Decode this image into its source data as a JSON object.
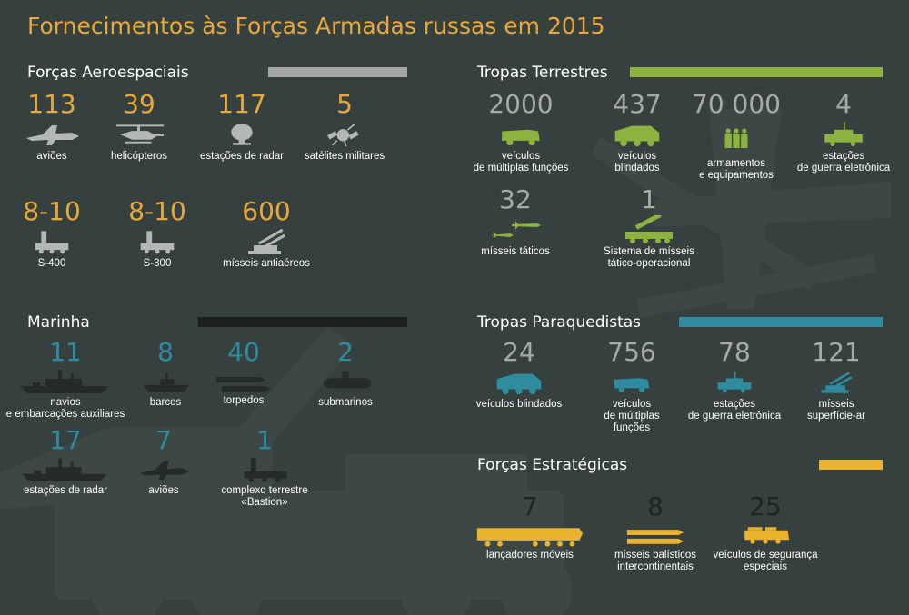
{
  "title": "Fornecimentos às Forças Armadas russas em 2015",
  "colors": {
    "background": "#36403e",
    "aerospace_number": "#e9a83c",
    "aerospace_icon": "#b3b8b6",
    "aerospace_bar": "#a3a7a6",
    "ground": "#8cb33f",
    "ground_number": "#a7aaa9",
    "navy": "#252b2a",
    "navy_number": "#2e8ba0",
    "airborne": "#2e8ba0",
    "airborne_number": "#a7aaa9",
    "strategic": "#e9b22f",
    "strategic_number": "#1f2423"
  },
  "sections": {
    "aerospace": {
      "title": "Forças Aeroespaciais",
      "items": [
        {
          "value": "113",
          "label": "aviões",
          "icon": "jet-icon"
        },
        {
          "value": "39",
          "label": "helicópteros",
          "icon": "helicopter-icon"
        },
        {
          "value": "117",
          "label": "estações de radar",
          "icon": "radar-dish-icon"
        },
        {
          "value": "5",
          "label": "satélites militares",
          "icon": "satellite-icon"
        },
        {
          "value": "8-10",
          "label": "S-400",
          "icon": "missile-launcher-truck-icon"
        },
        {
          "value": "8-10",
          "label": "S-300",
          "icon": "missile-launcher-truck-icon"
        },
        {
          "value": "600",
          "label": "mísseis antiaéreos",
          "icon": "antiaircraft-launcher-icon"
        }
      ]
    },
    "ground": {
      "title": "Tropas Terrestres",
      "items": [
        {
          "value": "2000",
          "label_lines": [
            "veículos",
            "de múltiplas funções"
          ],
          "icon": "utility-vehicle-icon"
        },
        {
          "value": "437",
          "label_lines": [
            "veículos",
            "blindados"
          ],
          "icon": "armored-vehicle-icon"
        },
        {
          "value": "70 000",
          "label_lines": [
            "armamentos",
            "e equipamentos"
          ],
          "icon": "soldiers-icon"
        },
        {
          "value": "4",
          "label_lines": [
            "estações",
            "de guerra eletrônica"
          ],
          "icon": "ew-station-icon"
        },
        {
          "value": "32",
          "label_lines": [
            "mísseis táticos"
          ],
          "icon": "tactical-missile-icon"
        },
        {
          "value": "1",
          "label_lines": [
            "Sistema de mísseis",
            "tático-operacional"
          ],
          "icon": "iskander-launcher-icon"
        }
      ]
    },
    "navy": {
      "title": "Marinha",
      "items": [
        {
          "value": "11",
          "label_lines": [
            "navios",
            "e embarcações auxiliares"
          ],
          "icon": "warship-icon"
        },
        {
          "value": "8",
          "label_lines": [
            "barcos"
          ],
          "icon": "boat-icon"
        },
        {
          "value": "40",
          "label_lines": [
            "torpedos"
          ],
          "icon": "torpedo-icon"
        },
        {
          "value": "2",
          "label_lines": [
            "submarinos"
          ],
          "icon": "submarine-icon"
        },
        {
          "value": "17",
          "label_lines": [
            "estações de radar"
          ],
          "icon": "radar-ship-icon"
        },
        {
          "value": "7",
          "label_lines": [
            "aviões"
          ],
          "icon": "naval-jet-icon"
        },
        {
          "value": "1",
          "label_lines": [
            "complexo terrestre",
            "«Bastion»"
          ],
          "icon": "coastal-launcher-icon"
        }
      ]
    },
    "airborne": {
      "title": "Tropas Paraquedistas",
      "items": [
        {
          "value": "24",
          "label_lines": [
            "veículos blindados"
          ],
          "icon": "armored-vehicle-icon"
        },
        {
          "value": "756",
          "label_lines": [
            "veículos",
            "de múltiplas",
            "funções"
          ],
          "icon": "utility-vehicle-icon"
        },
        {
          "value": "78",
          "label_lines": [
            "estações",
            "de guerra eletrônica"
          ],
          "icon": "ew-station-icon"
        },
        {
          "value": "121",
          "label_lines": [
            "mísseis",
            "superfície-ar"
          ],
          "icon": "antiaircraft-launcher-icon"
        }
      ]
    },
    "strategic": {
      "title": "Forças Estratégicas",
      "items": [
        {
          "value": "7",
          "label_lines": [
            "lançadores móveis"
          ],
          "icon": "mobile-launcher-icon"
        },
        {
          "value": "8",
          "label_lines": [
            "mísseis balísticos",
            "intercontinentais"
          ],
          "icon": "icbm-icon"
        },
        {
          "value": "25",
          "label_lines": [
            "veículos de segurança",
            "especiais"
          ],
          "icon": "security-vehicle-icon"
        }
      ]
    }
  },
  "chart_data": {
    "type": "table",
    "title": "Fornecimentos às Forças Armadas russas em 2015",
    "groups": [
      {
        "name": "Forças Aeroespaciais",
        "rows": [
          [
            "aviões",
            "113"
          ],
          [
            "helicópteros",
            "39"
          ],
          [
            "estações de radar",
            "117"
          ],
          [
            "satélites militares",
            "5"
          ],
          [
            "S-400",
            "8-10"
          ],
          [
            "S-300",
            "8-10"
          ],
          [
            "mísseis antiaéreos",
            "600"
          ]
        ]
      },
      {
        "name": "Tropas Terrestres",
        "rows": [
          [
            "veículos de múltiplas funções",
            "2000"
          ],
          [
            "veículos blindados",
            "437"
          ],
          [
            "armamentos e equipamentos",
            "70 000"
          ],
          [
            "estações de guerra eletrônica",
            "4"
          ],
          [
            "mísseis táticos",
            "32"
          ],
          [
            "Sistema de mísseis tático-operacional",
            "1"
          ]
        ]
      },
      {
        "name": "Marinha",
        "rows": [
          [
            "navios e embarcações auxiliares",
            "11"
          ],
          [
            "barcos",
            "8"
          ],
          [
            "torpedos",
            "40"
          ],
          [
            "submarinos",
            "2"
          ],
          [
            "estações de radar",
            "17"
          ],
          [
            "aviões",
            "7"
          ],
          [
            "complexo terrestre «Bastion»",
            "1"
          ]
        ]
      },
      {
        "name": "Tropas Paraquedistas",
        "rows": [
          [
            "veículos blindados",
            "24"
          ],
          [
            "veículos de múltiplas funções",
            "756"
          ],
          [
            "estações de guerra eletrônica",
            "78"
          ],
          [
            "mísseis superfície-ar",
            "121"
          ]
        ]
      },
      {
        "name": "Forças Estratégicas",
        "rows": [
          [
            "lançadores móveis",
            "7"
          ],
          [
            "mísseis balísticos intercontinentais",
            "8"
          ],
          [
            "veículos de segurança especiais",
            "25"
          ]
        ]
      }
    ]
  }
}
